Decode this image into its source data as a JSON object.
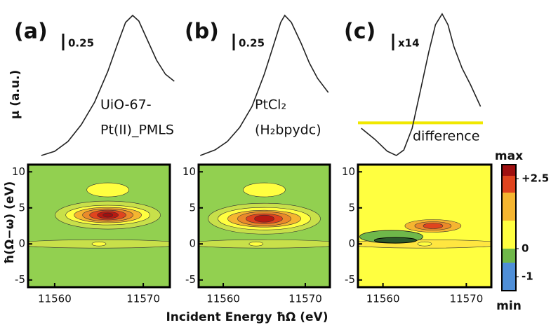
{
  "figure": {
    "y_label_top": "μ (a.u.)",
    "y_label_bottom": "ħ(Ω−ω)  (eV)",
    "x_label": "Incident Energy ħΩ (eV)",
    "colorbar": {
      "top_label": "max",
      "bottom_label": "min",
      "lim": [
        -1.5,
        3
      ],
      "bounds": [
        -1.5,
        -0.5,
        0,
        1,
        2,
        2.6,
        3
      ],
      "colors": [
        "#4f8fd8",
        "#6fb84a",
        "#ffff40",
        "#f5b530",
        "#e0441e",
        "#a01010"
      ],
      "ticks": [
        {
          "value": 2.5,
          "label": "+2.5"
        },
        0,
        -1
      ]
    }
  },
  "chart_data": [
    {
      "type": "line",
      "panel_label": "(a)",
      "scale_label": "0.25",
      "annotation": [
        "UiO-67-",
        "Pt(II)_PMLS"
      ],
      "x": [
        11558.5,
        11560,
        11561.5,
        11563,
        11564.5,
        11566,
        11567,
        11568,
        11568.8,
        11569.5,
        11570.5,
        11571.5,
        11572.5,
        11573.5
      ],
      "values": [
        0,
        0.03,
        0.1,
        0.22,
        0.38,
        0.6,
        0.78,
        0.95,
        1,
        0.96,
        0.82,
        0.68,
        0.58,
        0.53
      ],
      "color": "#222222",
      "xlim": [
        11557,
        11573
      ],
      "ylim": [
        0,
        1.05
      ],
      "map_ylim": [
        -6,
        11
      ],
      "xticks": [
        11560,
        11570
      ],
      "yticks": [
        -5,
        0,
        5,
        10
      ]
    },
    {
      "type": "line",
      "panel_label": "(b)",
      "scale_label": "0.25",
      "annotation": [
        "PtCl₂",
        "(H₂bpydc)"
      ],
      "x": [
        11557.2,
        11559,
        11560.5,
        11562,
        11563.5,
        11565,
        11566.2,
        11567,
        11567.5,
        11568.3,
        11569.5,
        11570.5,
        11571.5,
        11572.8
      ],
      "values": [
        0,
        0.04,
        0.1,
        0.2,
        0.35,
        0.58,
        0.8,
        0.95,
        1,
        0.95,
        0.8,
        0.66,
        0.55,
        0.45
      ],
      "color": "#222222",
      "xlim": [
        11557,
        11573
      ],
      "ylim": [
        0,
        1.05
      ],
      "map_ylim": [
        -6,
        11
      ],
      "xticks": [
        11560,
        11570
      ],
      "yticks": [
        -5,
        0,
        5,
        10
      ]
    },
    {
      "type": "line",
      "panel_label": "(c)",
      "scale_label": "x14",
      "annotation": [
        "difference"
      ],
      "x": [
        11557.4,
        11559,
        11560.5,
        11561.6,
        11562.5,
        11563.5,
        11564.5,
        11565.5,
        11566.3,
        11567.1,
        11567.8,
        11568.5,
        11569.5,
        11570.5,
        11571.7
      ],
      "values": [
        -0.05,
        -0.15,
        -0.26,
        -0.3,
        -0.25,
        -0.05,
        0.3,
        0.65,
        0.9,
        1,
        0.9,
        0.7,
        0.5,
        0.35,
        0.15
      ],
      "color": "#222222",
      "zero_line": 0,
      "zero_line_color": "#f0e800",
      "xlim": [
        11557,
        11573
      ],
      "ylim": [
        -0.3,
        1.05
      ],
      "map_ylim": [
        -6,
        11
      ],
      "xticks": [
        11560,
        11570
      ],
      "yticks": [
        -5,
        0,
        5,
        10
      ]
    }
  ]
}
